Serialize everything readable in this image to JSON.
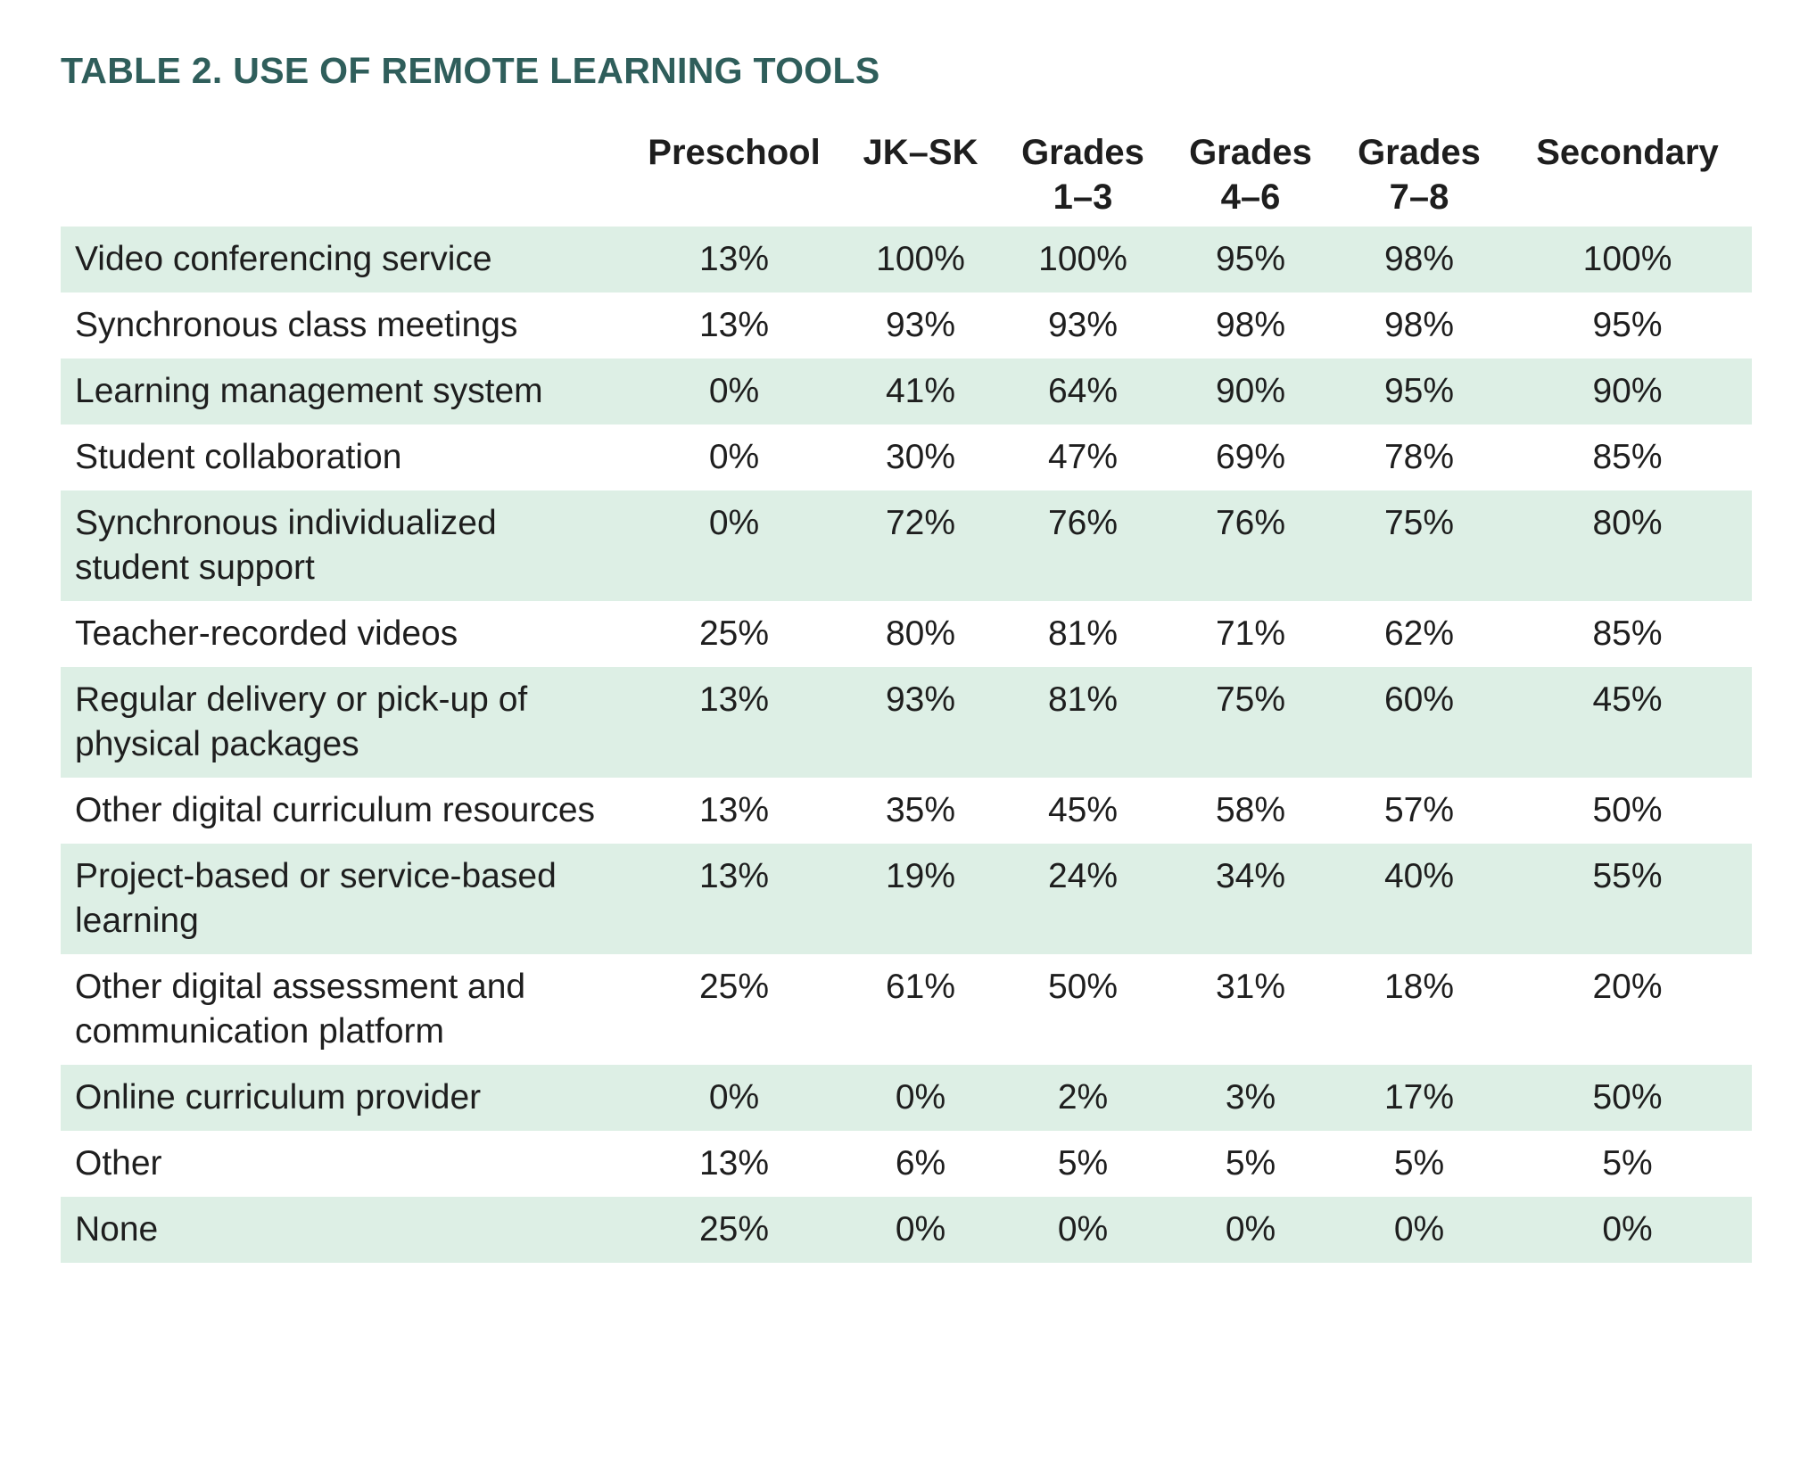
{
  "title": "TABLE 2. USE OF REMOTE LEARNING TOOLS",
  "columns": [
    "Preschool",
    "JK–SK",
    "Grades 1–3",
    "Grades 4–6",
    "Grades 7–8",
    "Secondary"
  ],
  "rows": [
    {
      "label": "Video conferencing service",
      "values": [
        "13%",
        "100%",
        "100%",
        "95%",
        "98%",
        "100%"
      ]
    },
    {
      "label": "Synchronous class meetings",
      "values": [
        "13%",
        "93%",
        "93%",
        "98%",
        "98%",
        "95%"
      ]
    },
    {
      "label": "Learning management system",
      "values": [
        "0%",
        "41%",
        "64%",
        "90%",
        "95%",
        "90%"
      ]
    },
    {
      "label": "Student collaboration",
      "values": [
        "0%",
        "30%",
        "47%",
        "69%",
        "78%",
        "85%"
      ]
    },
    {
      "label": "Synchronous individualized student support",
      "values": [
        "0%",
        "72%",
        "76%",
        "76%",
        "75%",
        "80%"
      ]
    },
    {
      "label": "Teacher-recorded videos",
      "values": [
        "25%",
        "80%",
        "81%",
        "71%",
        "62%",
        "85%"
      ]
    },
    {
      "label": "Regular delivery or pick-up of physical packages",
      "values": [
        "13%",
        "93%",
        "81%",
        "75%",
        "60%",
        "45%"
      ]
    },
    {
      "label": "Other digital curriculum resources",
      "values": [
        "13%",
        "35%",
        "45%",
        "58%",
        "57%",
        "50%"
      ]
    },
    {
      "label": "Project-based or service-based learning",
      "values": [
        "13%",
        "19%",
        "24%",
        "34%",
        "40%",
        "55%"
      ]
    },
    {
      "label": "Other digital assessment and communication platform",
      "values": [
        "25%",
        "61%",
        "50%",
        "31%",
        "18%",
        "20%"
      ]
    },
    {
      "label": "Online curriculum provider",
      "values": [
        "0%",
        "0%",
        "2%",
        "3%",
        "17%",
        "50%"
      ]
    },
    {
      "label": "Other",
      "values": [
        "13%",
        "6%",
        "5%",
        "5%",
        "5%",
        "5%"
      ]
    },
    {
      "label": "None",
      "values": [
        "25%",
        "0%",
        "0%",
        "0%",
        "0%",
        "0%"
      ]
    }
  ],
  "colors": {
    "title": "#2f5e5b",
    "row_shade": "#ddefe5",
    "text": "#1e1e1e"
  }
}
